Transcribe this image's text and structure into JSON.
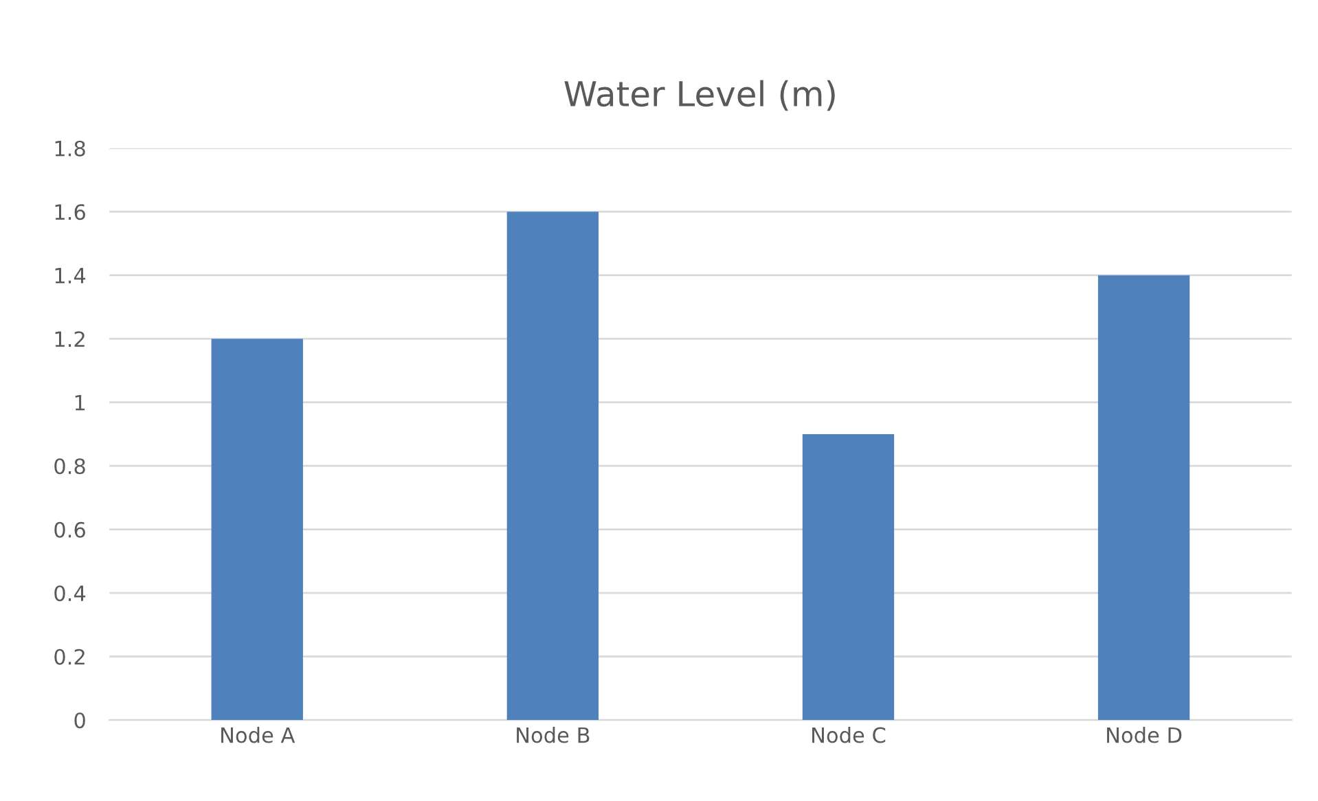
{
  "chart_data": {
    "type": "bar",
    "title": "Water Level (m)",
    "categories": [
      "Node A",
      "Node B",
      "Node C",
      "Node D"
    ],
    "values": [
      1.2,
      1.6,
      0.9,
      1.4
    ],
    "color": "#4f81bd",
    "ylim": [
      0,
      1.8
    ],
    "yticks": [
      0,
      0.2,
      0.4,
      0.6,
      0.8,
      1,
      1.2,
      1.4,
      1.6,
      1.8
    ],
    "grid": "y",
    "legend": false
  }
}
